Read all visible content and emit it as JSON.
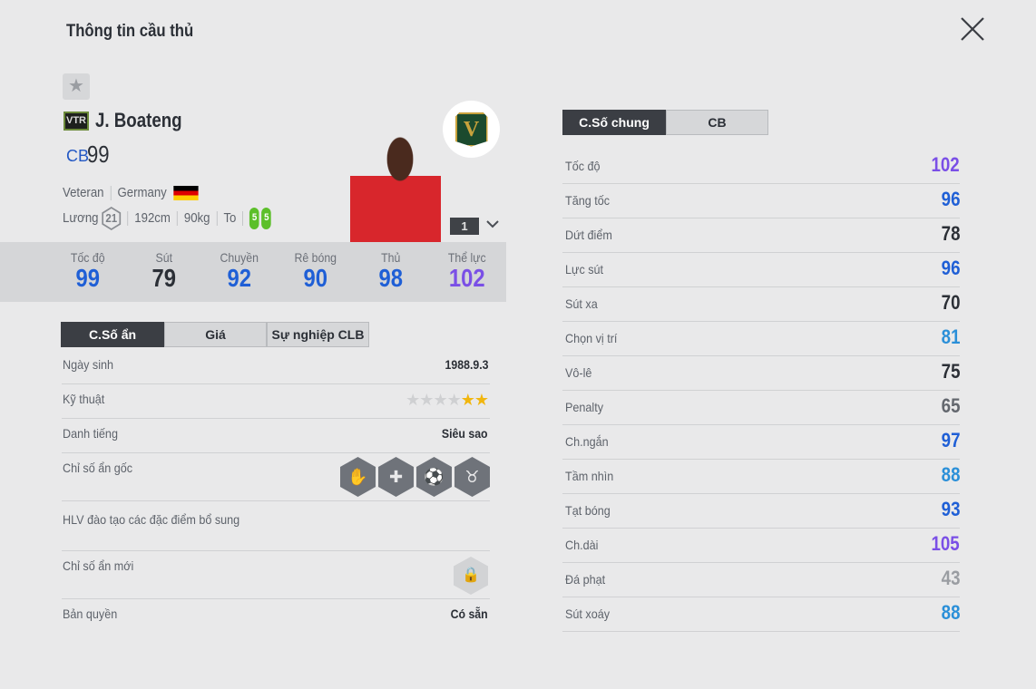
{
  "title": "Thông tin cầu thủ",
  "player": {
    "season_badge": "VTR",
    "name": "J. Boateng",
    "position": "CB",
    "overall": "99",
    "season": "Veteran",
    "nation": "Germany",
    "salary_label": "Lương",
    "salary": "21",
    "height": "192cm",
    "weight": "90kg",
    "body_type": "To",
    "left_foot": "5",
    "right_foot": "5",
    "club_logo": "V",
    "level": "1"
  },
  "summary": [
    {
      "label": "Tốc độ",
      "value": "99",
      "color": "#1f5fd6"
    },
    {
      "label": "Sút",
      "value": "79",
      "color": "#2b2f36"
    },
    {
      "label": "Chuyền",
      "value": "92",
      "color": "#1f5fd6"
    },
    {
      "label": "Rê bóng",
      "value": "90",
      "color": "#1f5fd6"
    },
    {
      "label": "Thủ",
      "value": "98",
      "color": "#1f5fd6"
    },
    {
      "label": "Thể lực",
      "value": "102",
      "color": "#7a4fe6"
    }
  ],
  "left_tabs": [
    "C.Số ẩn",
    "Giá",
    "Sự nghiệp CLB"
  ],
  "hidden": {
    "birth_label": "Ngày sinh",
    "birth": "1988.9.3",
    "skill_label": "Kỹ thuật",
    "skill_stars": 2,
    "skill_max": 6,
    "fame_label": "Danh tiếng",
    "fame": "Siêu sao",
    "traits_label": "Chỉ số ẩn gốc",
    "traits": [
      "goalkeeper-hands-icon",
      "ambulance-icon",
      "long-ball-icon",
      "bull-icon"
    ],
    "coach_label": "HLV đào tạo các đặc điểm bổ sung",
    "new_label": "Chỉ số ẩn mới",
    "license_label": "Bản quyền",
    "license": "Có sẵn"
  },
  "right_tabs": [
    "C.Số chung",
    "CB"
  ],
  "stats": [
    {
      "label": "Tốc độ",
      "value": "102",
      "color": "#7a4fe6"
    },
    {
      "label": "Tăng tốc",
      "value": "96",
      "color": "#1f5fd6"
    },
    {
      "label": "Dứt điểm",
      "value": "78",
      "color": "#2b2f36"
    },
    {
      "label": "Lực sút",
      "value": "96",
      "color": "#1f5fd6"
    },
    {
      "label": "Sút xa",
      "value": "70",
      "color": "#2b2f36"
    },
    {
      "label": "Chọn vị trí",
      "value": "81",
      "color": "#2a8fd8"
    },
    {
      "label": "Vô-lê",
      "value": "75",
      "color": "#2b2f36"
    },
    {
      "label": "Penalty",
      "value": "65",
      "color": "#63676e"
    },
    {
      "label": "Ch.ngắn",
      "value": "97",
      "color": "#1f5fd6"
    },
    {
      "label": "Tầm nhìn",
      "value": "88",
      "color": "#2a8fd8"
    },
    {
      "label": "Tạt bóng",
      "value": "93",
      "color": "#1f5fd6"
    },
    {
      "label": "Ch.dài",
      "value": "105",
      "color": "#7a4fe6"
    },
    {
      "label": "Đá phạt",
      "value": "43",
      "color": "#9a9da2"
    },
    {
      "label": "Sút xoáy",
      "value": "88",
      "color": "#2a8fd8"
    }
  ]
}
